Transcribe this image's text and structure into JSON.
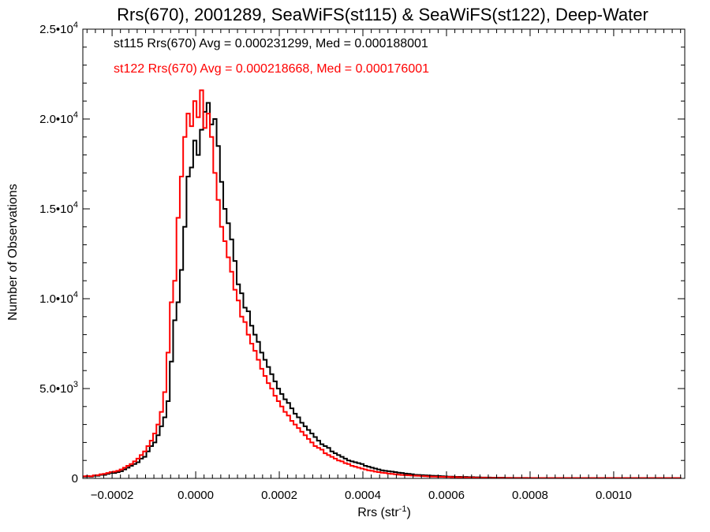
{
  "chart_data": {
    "type": "histogram",
    "title": "Rrs(670), 2001289, SeaWiFS(st115) & SeaWiFS(st122), Deep-Water",
    "xlabel": {
      "text": "Rrs (str",
      "sup": "-1",
      "suffix": ")"
    },
    "ylabel": "Number of Observations",
    "xlim": [
      -0.00027,
      0.00117
    ],
    "ylim": [
      0,
      25000
    ],
    "x_ticks": [
      {
        "value": -0.0002,
        "label": "−0.0002"
      },
      {
        "value": 0.0,
        "label": "0.0000"
      },
      {
        "value": 0.0002,
        "label": "0.0002"
      },
      {
        "value": 0.0004,
        "label": "0.0004"
      },
      {
        "value": 0.0006,
        "label": "0.0006"
      },
      {
        "value": 0.0008,
        "label": "0.0008"
      },
      {
        "value": 0.001,
        "label": "0.0010"
      }
    ],
    "y_ticks": [
      {
        "value": 0,
        "label": "0",
        "sup": ""
      },
      {
        "value": 5000,
        "label": "5.0•10",
        "sup": "3"
      },
      {
        "value": 10000,
        "label": "1.0•10",
        "sup": "4"
      },
      {
        "value": 15000,
        "label": "1.5•10",
        "sup": "4"
      },
      {
        "value": 20000,
        "label": "2.0•10",
        "sup": "4"
      },
      {
        "value": 25000,
        "label": "2.5•10",
        "sup": "4"
      }
    ],
    "series": [
      {
        "name": "st115",
        "color": "#000000",
        "legend": "st115 Rrs(670) Avg = 0.000231299, Med = 0.000188001",
        "bin_start": -0.00027,
        "bin_width": 8e-06,
        "counts": [
          100,
          110,
          100,
          150,
          150,
          200,
          200,
          250,
          300,
          300,
          350,
          400,
          500,
          600,
          700,
          800,
          900,
          1100,
          1200,
          1500,
          1800,
          2000,
          2400,
          2900,
          3400,
          4300,
          6500,
          8800,
          9800,
          11600,
          14000,
          16800,
          17300,
          18800,
          18000,
          19400,
          20400,
          20900,
          19700,
          20000,
          18500,
          16500,
          15000,
          14200,
          13300,
          12100,
          10800,
          10300,
          9500,
          9300,
          8500,
          8000,
          7600,
          7000,
          6600,
          6200,
          5800,
          5400,
          5000,
          4700,
          4400,
          4200,
          3900,
          3600,
          3400,
          3100,
          2900,
          2700,
          2500,
          2300,
          2100,
          1900,
          1800,
          1700,
          1500,
          1400,
          1300,
          1200,
          1100,
          1000,
          950,
          900,
          850,
          800,
          700,
          650,
          600,
          550,
          500,
          450,
          420,
          400,
          380,
          350,
          320,
          300,
          270,
          250,
          230,
          200,
          190,
          180,
          170,
          160,
          150,
          140,
          130,
          120,
          110,
          100,
          100,
          90,
          90,
          80,
          80,
          70,
          70,
          60,
          60,
          50,
          50,
          50,
          40,
          40,
          40,
          40,
          30,
          30,
          30,
          30,
          30,
          30,
          30,
          20,
          20,
          20,
          20,
          20,
          20,
          20,
          20,
          20,
          20,
          20,
          20,
          20,
          20,
          20,
          20,
          20,
          20,
          20,
          20,
          20,
          20,
          20,
          20,
          20,
          20,
          20,
          20,
          20,
          20,
          20,
          20,
          20,
          20,
          20,
          20,
          20,
          20,
          20,
          20,
          20,
          20,
          20
        ]
      },
      {
        "name": "st122",
        "color": "#ff0000",
        "legend": "st122 Rrs(670) Avg = 0.000218668, Med = 0.000176001",
        "bin_start": -0.00027,
        "bin_width": 8e-06,
        "counts": [
          120,
          130,
          120,
          170,
          180,
          230,
          250,
          300,
          350,
          380,
          420,
          500,
          600,
          700,
          800,
          950,
          1100,
          1300,
          1500,
          1800,
          2100,
          2500,
          3000,
          3700,
          4800,
          7000,
          9800,
          11000,
          14500,
          16800,
          19000,
          20300,
          19600,
          21000,
          20100,
          21600,
          19500,
          20300,
          19000,
          17000,
          15500,
          14000,
          13200,
          12300,
          11500,
          10500,
          9900,
          9000,
          8700,
          8000,
          7500,
          7100,
          6600,
          6100,
          5700,
          5300,
          5000,
          4600,
          4300,
          4000,
          3700,
          3500,
          3200,
          3000,
          2800,
          2600,
          2400,
          2200,
          2000,
          1800,
          1700,
          1600,
          1400,
          1300,
          1200,
          1100,
          1000,
          950,
          850,
          800,
          700,
          650,
          600,
          550,
          500,
          450,
          420,
          380,
          350,
          320,
          300,
          270,
          250,
          230,
          210,
          190,
          180,
          170,
          160,
          150,
          140,
          130,
          120,
          110,
          100,
          100,
          90,
          90,
          80,
          80,
          70,
          70,
          60,
          60,
          50,
          50,
          50,
          40,
          40,
          40,
          40,
          30,
          30,
          30,
          30,
          30,
          30,
          30,
          20,
          20,
          20,
          20,
          20,
          20,
          20,
          20,
          20,
          20,
          20,
          20,
          20,
          20,
          20,
          20,
          20,
          20,
          20,
          20,
          20,
          20,
          20,
          20,
          20,
          20,
          20,
          20,
          20,
          20,
          20,
          20,
          20,
          20,
          20,
          20,
          20,
          20,
          20,
          20,
          20,
          20,
          20,
          20,
          20,
          20,
          20,
          20,
          20,
          20,
          20
        ]
      }
    ],
    "legend_position": "top-left",
    "grid": false
  }
}
